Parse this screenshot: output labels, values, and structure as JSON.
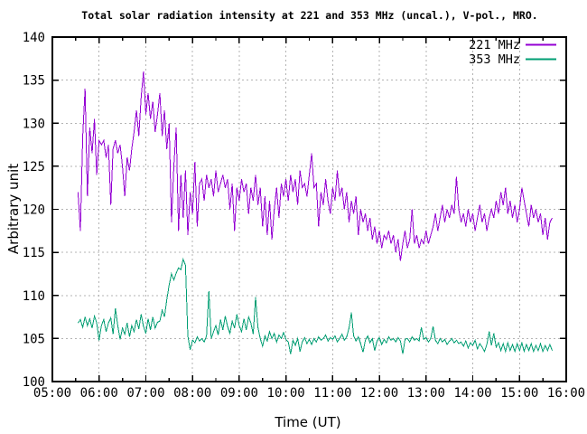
{
  "title": "Total solar radiation intensity at 221 and 353 MHz (uncal.), V-pol., MRO.",
  "axes": {
    "xlabel": "Time (UT)",
    "ylabel": "Arbitrary unit",
    "x_tick_hours": [
      5,
      6,
      7,
      8,
      9,
      10,
      11,
      12,
      13,
      14,
      15,
      16
    ],
    "x_tick_labels": [
      "05:00",
      "06:00",
      "07:00",
      "08:00",
      "09:00",
      "10:00",
      "11:00",
      "12:00",
      "13:00",
      "14:00",
      "15:00",
      "16:00"
    ],
    "x_minor_tick_hours": [
      5.5,
      6.5,
      7.5,
      8.5,
      9.5,
      10.5,
      11.5,
      12.5,
      13.5,
      14.5,
      15.5
    ],
    "y_ticks": [
      100,
      105,
      110,
      115,
      120,
      125,
      130,
      135,
      140
    ],
    "x_grid_hours": [
      6,
      7,
      8,
      9,
      10,
      11,
      12,
      13,
      14,
      15
    ],
    "y_grid_values": [
      105,
      110,
      115,
      120,
      125,
      130,
      135
    ],
    "grid_color": "#b3b3b3"
  },
  "legend": {
    "position": "top-right-inside",
    "items": [
      {
        "label": "221 MHz",
        "color": "#9400d3"
      },
      {
        "label": "353 MHz",
        "color": "#009e73"
      }
    ]
  },
  "chart_data": {
    "type": "line",
    "title": "Total solar radiation intensity at 221 and 353 MHz (uncal.), V-pol., MRO.",
    "xlabel": "Time (UT)",
    "ylabel": "Arbitrary unit",
    "xlim_hours": [
      5,
      16
    ],
    "ylim": [
      100,
      140
    ],
    "grid": true,
    "legend_position": "top-right-inside",
    "sampling": {
      "t_start_hours": 5.55,
      "t_step_hours": 0.05,
      "n_points": 204
    },
    "series": [
      {
        "name": "221 MHz",
        "color": "#9400d3",
        "values": [
          122,
          117.5,
          128.5,
          134,
          121.5,
          129.5,
          126.5,
          130.5,
          124,
          128,
          127.5,
          128,
          126,
          127.5,
          120.5,
          127,
          128,
          126.5,
          127.5,
          125,
          121.5,
          126,
          124.5,
          127,
          129,
          131.5,
          128.5,
          133,
          136,
          131,
          133.5,
          130.5,
          132.5,
          129,
          131,
          133.5,
          128.5,
          131.5,
          127,
          130,
          118.5,
          125,
          129.5,
          117.5,
          124,
          119,
          124.5,
          117,
          122,
          119.5,
          125.5,
          118,
          123,
          123.5,
          121,
          124,
          122.5,
          123.5,
          121.5,
          124.5,
          122,
          123,
          124,
          122.5,
          123.5,
          120,
          123,
          117.5,
          122.5,
          121,
          123.5,
          122,
          123,
          119.5,
          122.5,
          121,
          124,
          120.5,
          122.5,
          118,
          121.5,
          117,
          121,
          116.5,
          120,
          122.5,
          119,
          123,
          121.5,
          123.5,
          121,
          124,
          122,
          123.5,
          120.5,
          124.5,
          122.5,
          123,
          121.5,
          124,
          126.5,
          122.5,
          123,
          118,
          122,
          120.5,
          123.5,
          121,
          119.5,
          122.5,
          121,
          124.5,
          121.5,
          122.5,
          120,
          122,
          118.5,
          121,
          119.5,
          121.5,
          117,
          120,
          118.5,
          119.5,
          117.5,
          119,
          116.5,
          118,
          116,
          117.5,
          115.5,
          117,
          116.5,
          117.5,
          116,
          117,
          115,
          116.5,
          114,
          116,
          117.5,
          115.5,
          116.5,
          120,
          116,
          117,
          115.5,
          116.5,
          116,
          117.5,
          116,
          117,
          118,
          119.5,
          117.5,
          119,
          120.5,
          118.5,
          120,
          119,
          120.5,
          119.5,
          123.8,
          120,
          118.5,
          119.5,
          118,
          120,
          118.5,
          119.5,
          117.5,
          119,
          120.5,
          118.5,
          119.5,
          117.5,
          119,
          120,
          119,
          121,
          119.5,
          122,
          120.5,
          122.5,
          119.5,
          121,
          119,
          120.5,
          118.5,
          120,
          122.5,
          121,
          119.5,
          118,
          120.5,
          119,
          120,
          118.5,
          119.5,
          117,
          119,
          116.5,
          118.5,
          119
        ]
      },
      {
        "name": "353 MHz",
        "color": "#009e73",
        "values": [
          106.8,
          107.2,
          106.3,
          107.5,
          106.5,
          107.3,
          106.2,
          107.6,
          106.8,
          104.8,
          106.5,
          107.2,
          105.8,
          106.8,
          107.4,
          105.5,
          108.5,
          106.5,
          104.9,
          106.2,
          105.5,
          106.8,
          105.2,
          106.5,
          105.8,
          107.2,
          106.1,
          107.8,
          106.4,
          105.6,
          107.3,
          106,
          107.5,
          106.2,
          106.9,
          107,
          108.3,
          107.5,
          109.5,
          111.2,
          112.5,
          111.8,
          112.6,
          113.2,
          113,
          114.2,
          113.5,
          105.3,
          103.7,
          104.8,
          104.5,
          105.2,
          104.7,
          105,
          104.6,
          105.3,
          110.5,
          105,
          105.8,
          106.5,
          105.4,
          107.2,
          106,
          107.6,
          106.4,
          105.6,
          107,
          106.2,
          107.8,
          106.5,
          105.8,
          107.3,
          106,
          107.5,
          106.8,
          105.5,
          109.8,
          106.3,
          105,
          104.1,
          105.3,
          104.7,
          105.8,
          105,
          105.6,
          104.6,
          105.4,
          105,
          105.7,
          104.9,
          104.6,
          103.2,
          104.8,
          104.2,
          105,
          103.5,
          104.6,
          105.1,
          104.4,
          104.9,
          104.3,
          105,
          104.6,
          105.2,
          104.8,
          105,
          105.4,
          104.7,
          105.1,
          104.9,
          105.3,
          104.6,
          105,
          105.5,
          104.8,
          105.2,
          106.2,
          108,
          105.3,
          104.7,
          105.2,
          104.4,
          103.4,
          104.8,
          105.3,
          104.5,
          105,
          103.6,
          104.7,
          105.1,
          104.3,
          104.9,
          104.5,
          105.2,
          104.8,
          105,
          104.6,
          105.1,
          104.7,
          103.2,
          104.9,
          105,
          104.6,
          105.2,
          104.8,
          105,
          104.7,
          106.3,
          104.9,
          105.1,
          104.6,
          105,
          106.4,
          104.8,
          104.4,
          105,
          104.6,
          104.9,
          104.3,
          104.7,
          105,
          104.5,
          104.8,
          104.4,
          104.6,
          104.1,
          104.7,
          103.9,
          104.5,
          104.2,
          104.8,
          103.8,
          104.4,
          104,
          103.5,
          104.3,
          105.8,
          104.2,
          105.6,
          104,
          104.5,
          103.6,
          104.4,
          103.5,
          104.5,
          103.6,
          104.3,
          103.5,
          104.4,
          103.6,
          104.5,
          103.5,
          104.3,
          103.6,
          104.4,
          103.5,
          104.2,
          103.6,
          104.4,
          103.5,
          104.2,
          103.6,
          104.3,
          103.6
        ]
      }
    ]
  }
}
